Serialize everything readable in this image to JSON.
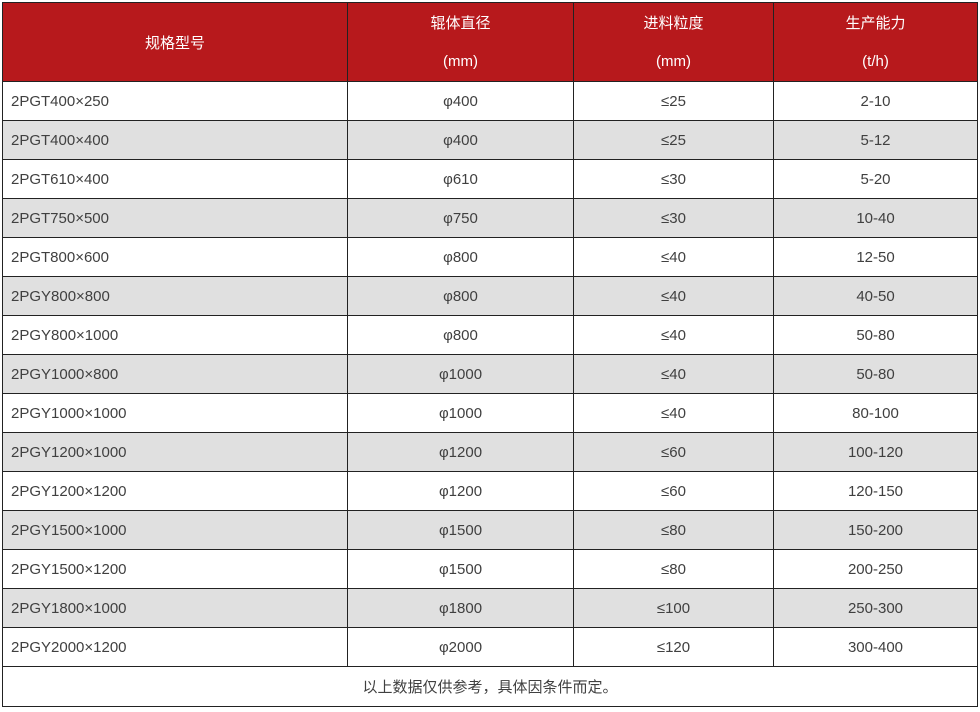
{
  "table": {
    "colors": {
      "header_bg": "#b7191c",
      "header_text": "#ffffff",
      "row_bg": "#ffffff",
      "row_alt_bg": "#e0e0e0",
      "border": "#222222",
      "body_text": "#404040"
    },
    "columns": [
      {
        "title": "规格型号",
        "unit": ""
      },
      {
        "title": "辊体直径",
        "unit": "(mm)"
      },
      {
        "title": "进料粒度",
        "unit": "(mm)"
      },
      {
        "title": "生产能力",
        "unit": "(t/h)"
      }
    ],
    "rows": [
      [
        "2PGT400×250",
        "φ400",
        "≤25",
        "2-10"
      ],
      [
        "2PGT400×400",
        "φ400",
        "≤25",
        "5-12"
      ],
      [
        "2PGT610×400",
        "φ610",
        "≤30",
        "5-20"
      ],
      [
        "2PGT750×500",
        "φ750",
        "≤30",
        "10-40"
      ],
      [
        "2PGT800×600",
        "φ800",
        "≤40",
        "12-50"
      ],
      [
        "2PGY800×800",
        "φ800",
        "≤40",
        "40-50"
      ],
      [
        "2PGY800×1000",
        "φ800",
        "≤40",
        "50-80"
      ],
      [
        "2PGY1000×800",
        "φ1000",
        "≤40",
        "50-80"
      ],
      [
        "2PGY1000×1000",
        "φ1000",
        "≤40",
        "80-100"
      ],
      [
        "2PGY1200×1000",
        "φ1200",
        "≤60",
        "100-120"
      ],
      [
        "2PGY1200×1200",
        "φ1200",
        "≤60",
        "120-150"
      ],
      [
        "2PGY1500×1000",
        "φ1500",
        "≤80",
        "150-200"
      ],
      [
        "2PGY1500×1200",
        "φ1500",
        "≤80",
        "200-250"
      ],
      [
        "2PGY1800×1000",
        "φ1800",
        "≤100",
        "250-300"
      ],
      [
        "2PGY2000×1200",
        "φ2000",
        "≤120",
        "300-400"
      ]
    ],
    "footnote": "以上数据仅供参考，具体因条件而定。"
  }
}
